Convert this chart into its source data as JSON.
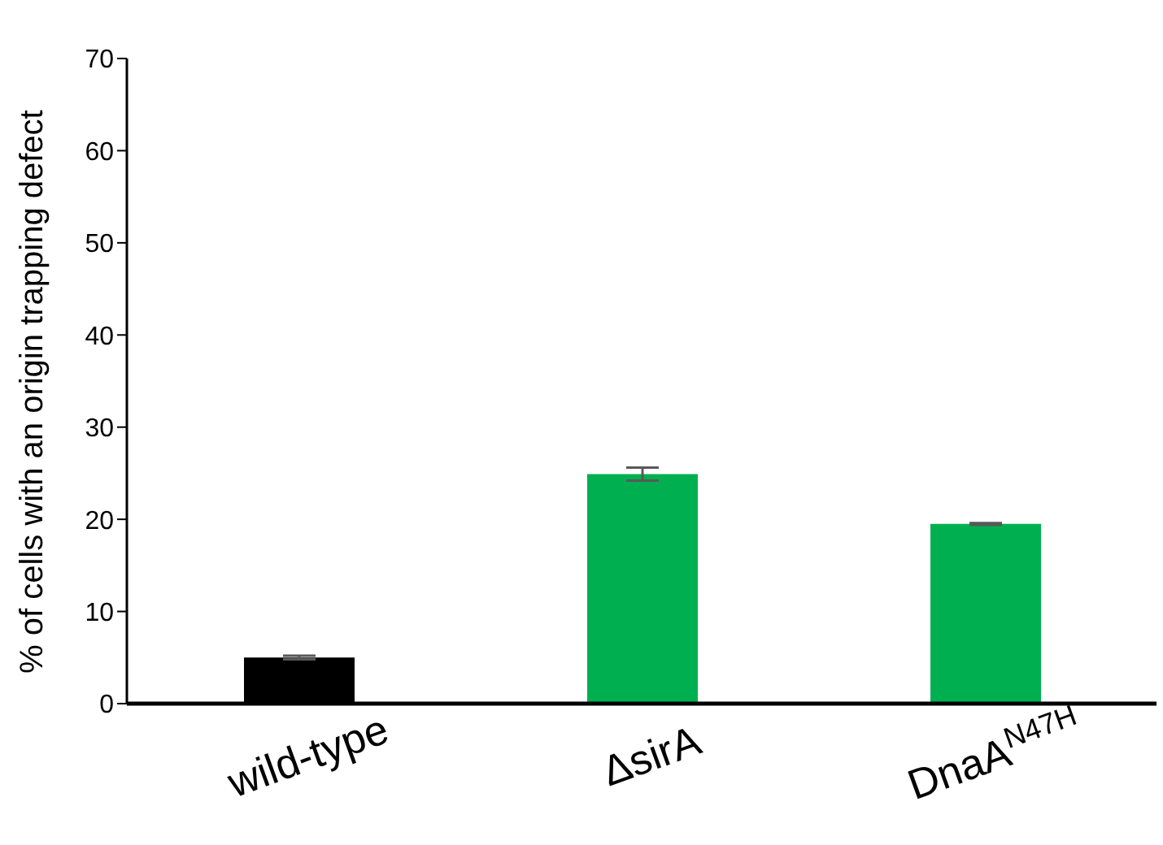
{
  "chart_data": {
    "type": "bar",
    "ylabel": "% of cells with an origin trapping defect",
    "categories": [
      "wild-type",
      "ΔsirA",
      "DnaA$^{N47H}$"
    ],
    "values": [
      5.0,
      24.9,
      19.5
    ],
    "colors": [
      "#000000",
      "#00b050",
      "#00b050"
    ],
    "errors": [
      0.2,
      0.7,
      0.1
    ],
    "ylim": [
      0,
      70
    ],
    "yticks": [
      0,
      10,
      20,
      30,
      40,
      50,
      60,
      70
    ],
    "grid": false,
    "legend": false
  }
}
